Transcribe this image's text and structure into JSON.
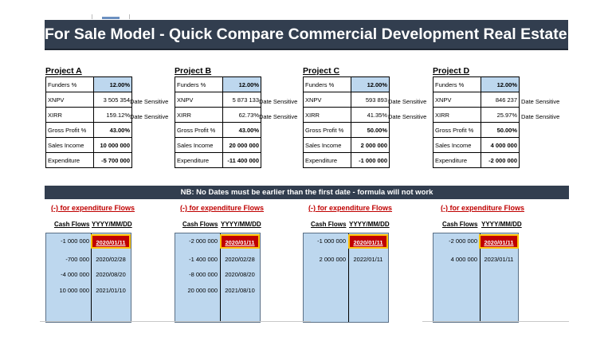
{
  "title": "For Sale Model - Quick Compare Commercial Development Real Estate Opportunities",
  "nb_note": "NB: No Dates must be earlier than the first date - formula will not work",
  "flow_note": "(-) for expenditure Flows",
  "headers": {
    "cash_flows": "Cash Flows",
    "date_format": "YYYY/MM/DD"
  },
  "labels": {
    "funders": "Funders %",
    "xnpv": "XNPV",
    "xirr": "XIRR",
    "gross_profit": "Gross Profit %",
    "sales_income": "Sales Income",
    "expenditure": "Expenditure",
    "date_sensitive": "Date Sensitive"
  },
  "projects": [
    {
      "name": "Project A",
      "funders": "12.00%",
      "xnpv": "3 505 354",
      "xirr": "159.12%",
      "gross_profit": "43.00%",
      "sales_income": "10 000 000",
      "expenditure": "-5 700 000",
      "flows": [
        {
          "amount": "-1 000 000",
          "date": "2020/01/11"
        },
        {
          "amount": "-700 000",
          "date": "2020/02/28"
        },
        {
          "amount": "-4 000 000",
          "date": "2020/08/20"
        },
        {
          "amount": "10 000 000",
          "date": "2021/01/10"
        }
      ]
    },
    {
      "name": "Project B",
      "funders": "12.00%",
      "xnpv": "5 873 133",
      "xirr": "62.73%",
      "gross_profit": "43.00%",
      "sales_income": "20 000 000",
      "expenditure": "-11 400 000",
      "flows": [
        {
          "amount": "-2 000 000",
          "date": "2020/01/11"
        },
        {
          "amount": "-1 400 000",
          "date": "2020/02/28"
        },
        {
          "amount": "-8 000 000",
          "date": "2020/08/20"
        },
        {
          "amount": "20 000 000",
          "date": "2021/08/10"
        }
      ]
    },
    {
      "name": "Project C",
      "funders": "12.00%",
      "xnpv": "593 893",
      "xirr": "41.35%",
      "gross_profit": "50.00%",
      "sales_income": "2 000 000",
      "expenditure": "-1 000 000",
      "flows": [
        {
          "amount": "-1 000 000",
          "date": "2020/01/11"
        },
        {
          "amount": "2 000 000",
          "date": "2022/01/11"
        }
      ]
    },
    {
      "name": "Project D",
      "funders": "12.00%",
      "xnpv": "846 237",
      "xirr": "25.97%",
      "gross_profit": "50.00%",
      "sales_income": "4 000 000",
      "expenditure": "-2 000 000",
      "flows": [
        {
          "amount": "-2 000 000",
          "date": "2020/01/11"
        },
        {
          "amount": "4 000 000",
          "date": "2023/01/11"
        }
      ]
    }
  ]
}
